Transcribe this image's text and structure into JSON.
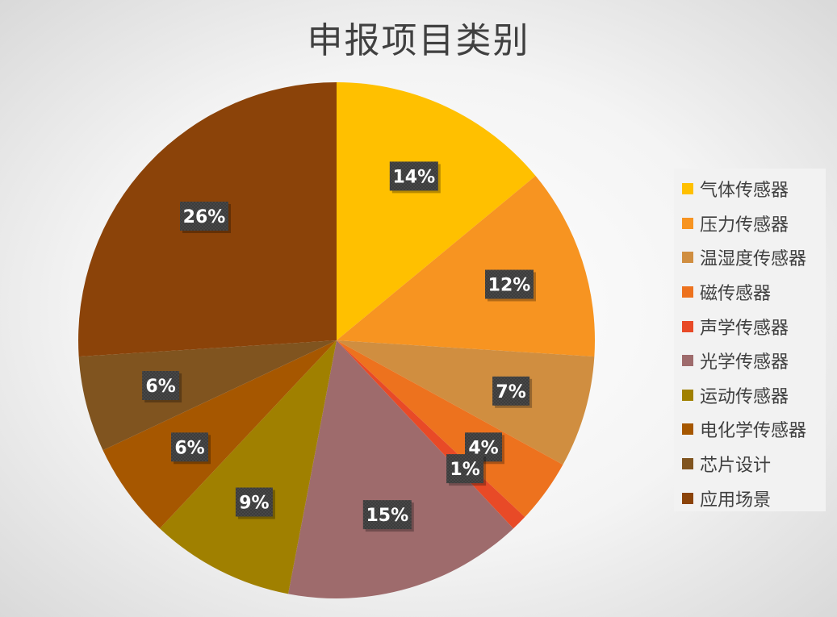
{
  "chart_data": {
    "type": "pie",
    "title": "申报项目类别",
    "legend_position": "right",
    "start_angle_deg": 0,
    "direction": "clockwise",
    "slices": [
      {
        "name": "气体传感器",
        "value": 14,
        "label": "14%",
        "color": "#FFC000"
      },
      {
        "name": "压力传感器",
        "value": 12,
        "label": "12%",
        "color": "#F79421"
      },
      {
        "name": "温湿度传感器",
        "value": 7,
        "label": "7%",
        "color": "#D08E40"
      },
      {
        "name": "磁传感器",
        "value": 4,
        "label": "4%",
        "color": "#ED721E"
      },
      {
        "name": "声学传感器",
        "value": 1,
        "label": "1%",
        "color": "#E84A27"
      },
      {
        "name": "光学传感器",
        "value": 15,
        "label": "15%",
        "color": "#9E6B6C"
      },
      {
        "name": "运动传感器",
        "value": 9,
        "label": "9%",
        "color": "#A08000"
      },
      {
        "name": "电化学传感器",
        "value": 6,
        "label": "6%",
        "color": "#A65700"
      },
      {
        "name": "芯片设计",
        "value": 6,
        "label": "6%",
        "color": "#80541F"
      },
      {
        "name": "应用场景",
        "value": 26,
        "label": "26%",
        "color": "#8B4309"
      }
    ]
  }
}
